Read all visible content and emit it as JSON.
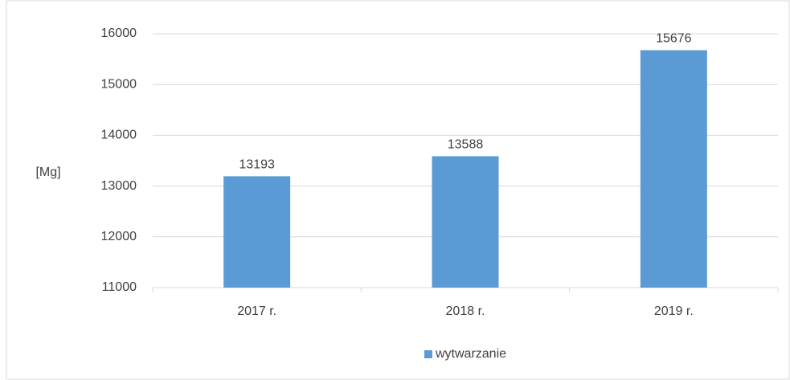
{
  "chart_data": {
    "type": "bar",
    "y_label": "[Mg]",
    "categories": [
      "2017 r.",
      "2018 r.",
      "2019 r."
    ],
    "series": [
      {
        "name": "wytwarzanie",
        "color": "#5b9bd5",
        "values": [
          13193,
          13588,
          15676
        ]
      }
    ],
    "ylim": [
      11000,
      16000
    ],
    "yticks": [
      11000,
      12000,
      13000,
      14000,
      15000,
      16000
    ],
    "grid": true,
    "legend": "bottom"
  }
}
